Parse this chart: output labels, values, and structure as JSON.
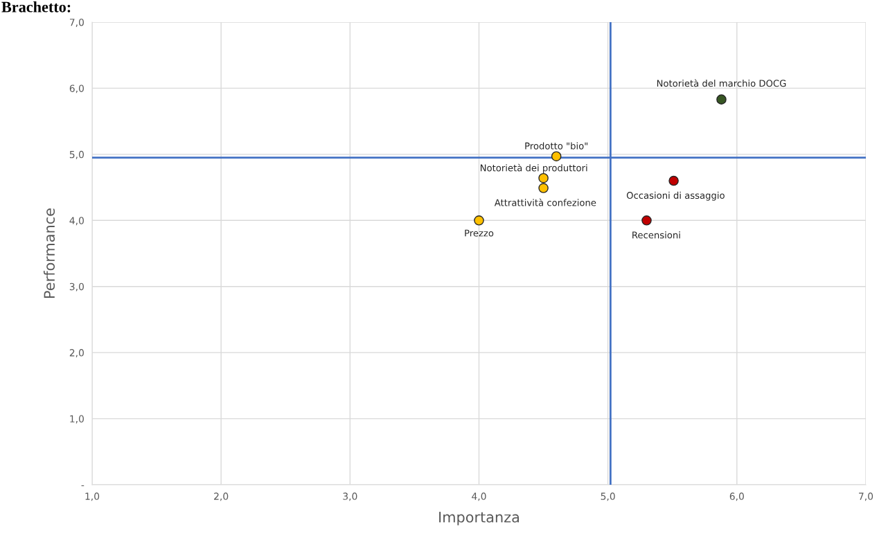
{
  "chart_data": {
    "type": "scatter",
    "title": "Brachetto:",
    "xlabel": "Importanza",
    "ylabel": "Performance",
    "x": [
      5.88,
      4.6,
      4.5,
      4.5,
      4.0,
      5.51,
      5.3
    ],
    "values": [
      5.83,
      4.97,
      4.64,
      4.49,
      4.0,
      4.6,
      4.0
    ],
    "colors": [
      "#375623",
      "#ffc000",
      "#ffc000",
      "#ffc000",
      "#ffc000",
      "#c00000",
      "#c00000"
    ],
    "marker": "circle",
    "grid": true,
    "xlim": [
      1,
      7
    ],
    "ylim": [
      0,
      7
    ],
    "xticks": [
      {
        "value": 1,
        "label": "1,0"
      },
      {
        "value": 2,
        "label": "2,0"
      },
      {
        "value": 3,
        "label": "3,0"
      },
      {
        "value": 4,
        "label": "4,0"
      },
      {
        "value": 5,
        "label": "5,0"
      },
      {
        "value": 6,
        "label": "6,0"
      },
      {
        "value": 7,
        "label": "7,0"
      }
    ],
    "yticks": [
      {
        "value": 0,
        "label": "-"
      },
      {
        "value": 1,
        "label": "1,0"
      },
      {
        "value": 2,
        "label": "2,0"
      },
      {
        "value": 3,
        "label": "3,0"
      },
      {
        "value": 4,
        "label": "4,0"
      },
      {
        "value": 5,
        "label": "5,0"
      },
      {
        "value": 6,
        "label": "6,0"
      },
      {
        "value": 7,
        "label": "7,0"
      }
    ],
    "ref_lines": [
      {
        "axis": "x",
        "value": 5.02,
        "color": "#4472c4"
      },
      {
        "axis": "y",
        "value": 4.95,
        "color": "#4472c4"
      }
    ],
    "annotations": [
      {
        "text": "Notorietà del marchio DOCG",
        "x": 5.88,
        "y": 5.83
      },
      {
        "text": "Prodotto \"bio\"",
        "x": 4.6,
        "y": 4.97
      },
      {
        "text": "Notorietà dei produttori",
        "x": 4.5,
        "y": 4.64
      },
      {
        "text": "Attrattività confezione",
        "x": 4.5,
        "y": 4.49
      },
      {
        "text": "Prezzo",
        "x": 4.0,
        "y": 4.0
      },
      {
        "text": "Occasioni di assaggio",
        "x": 5.51,
        "y": 4.6
      },
      {
        "text": "Recensioni",
        "x": 5.3,
        "y": 4.0
      }
    ]
  }
}
